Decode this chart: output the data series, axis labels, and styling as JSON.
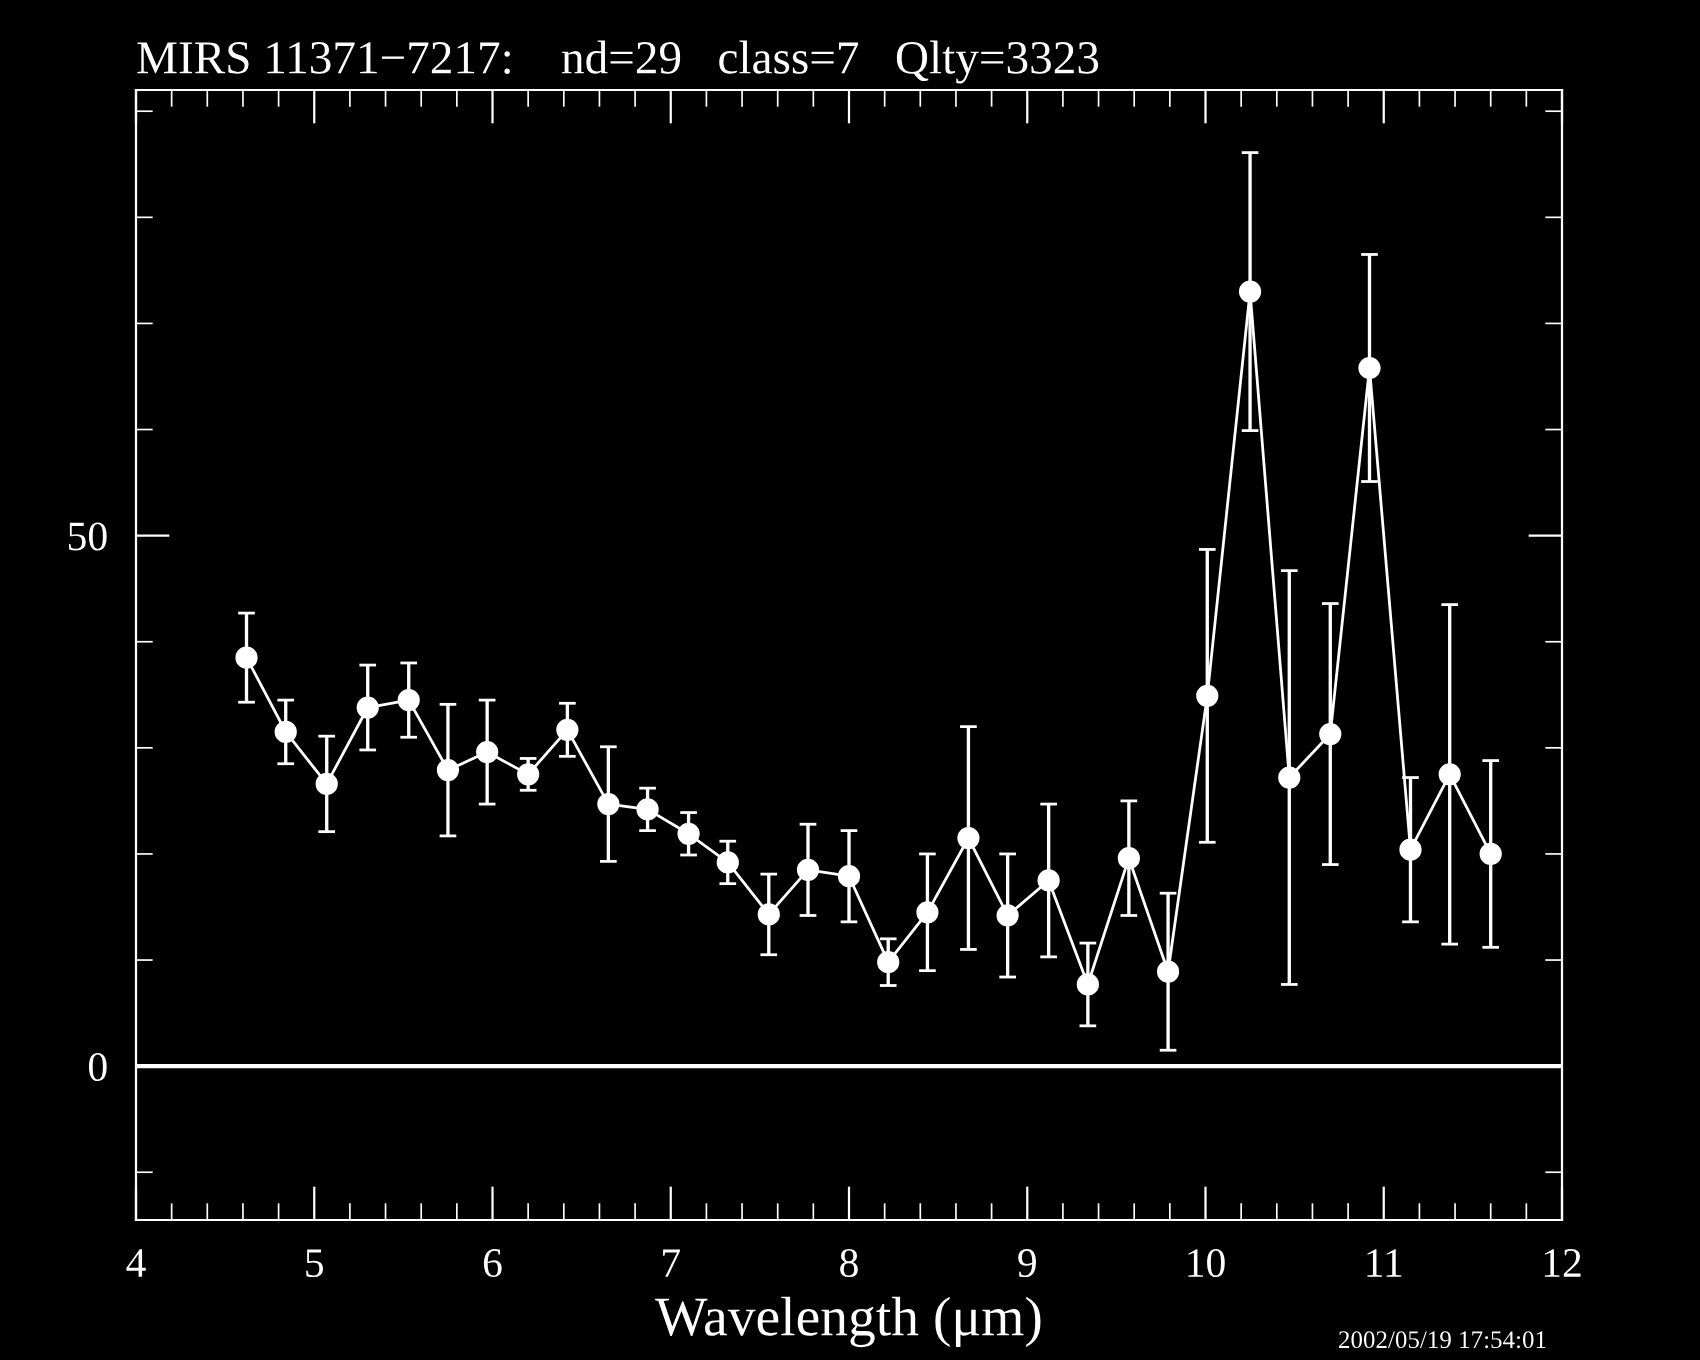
{
  "chart_data": {
    "type": "line",
    "title": "MIRS 11371−7217:    nd=29   class=7   Qlty=3323",
    "xlabel": "Wavelength (μm)",
    "annotations": [
      "2002/05/19 17:54:01"
    ],
    "x": [
      4.62,
      4.84,
      5.07,
      5.3,
      5.53,
      5.75,
      5.97,
      6.2,
      6.42,
      6.65,
      6.87,
      7.1,
      7.32,
      7.55,
      7.77,
      8.0,
      8.22,
      8.44,
      8.67,
      8.89,
      9.12,
      9.34,
      9.57,
      9.79,
      10.01,
      10.25,
      10.47,
      10.7,
      10.92,
      11.15,
      11.37,
      11.6
    ],
    "series": [
      {
        "color": "#ffffff",
        "values": [
          38.5,
          31.5,
          26.6,
          33.8,
          34.5,
          27.9,
          29.6,
          27.5,
          31.7,
          24.7,
          24.2,
          21.9,
          19.2,
          14.3,
          18.5,
          17.9,
          9.8,
          14.5,
          21.5,
          14.2,
          17.5,
          7.7,
          19.6,
          8.9,
          34.9,
          73.0,
          27.2,
          31.3,
          65.8,
          20.4,
          27.5,
          20.0
        ],
        "errors": [
          4.2,
          3,
          4.5,
          4,
          3.5,
          6.2,
          4.9,
          1.5,
          2.5,
          5.4,
          2,
          2,
          2,
          3.8,
          4.3,
          4.3,
          2.2,
          5.5,
          10.5,
          5.8,
          7.2,
          3.9,
          5.4,
          7.4,
          13.8,
          13.1,
          19.5,
          12.3,
          10.7,
          6.8,
          16,
          8.8
        ]
      }
    ],
    "marker": "circle",
    "line_style": "solid",
    "grid": false,
    "legend": false,
    "xlim": [
      4,
      12
    ],
    "ylim": [
      -14.5,
      92
    ],
    "xticks": [
      4,
      {
        "value": 4.2,
        "label": null
      },
      {
        "value": 4.4,
        "label": null
      },
      {
        "value": 4.6,
        "label": null
      },
      {
        "value": 4.8,
        "label": null
      },
      5,
      {
        "value": 5.2,
        "label": null
      },
      {
        "value": 5.4,
        "label": null
      },
      {
        "value": 5.6,
        "label": null
      },
      {
        "value": 5.8,
        "label": null
      },
      6,
      {
        "value": 6.2,
        "label": null
      },
      {
        "value": 6.4,
        "label": null
      },
      {
        "value": 6.6,
        "label": null
      },
      {
        "value": 6.8,
        "label": null
      },
      7,
      {
        "value": 7.2,
        "label": null
      },
      {
        "value": 7.4,
        "label": null
      },
      {
        "value": 7.6,
        "label": null
      },
      {
        "value": 7.8,
        "label": null
      },
      8,
      {
        "value": 8.2,
        "label": null
      },
      {
        "value": 8.4,
        "label": null
      },
      {
        "value": 8.6,
        "label": null
      },
      {
        "value": 8.8,
        "label": null
      },
      9,
      {
        "value": 9.2,
        "label": null
      },
      {
        "value": 9.4,
        "label": null
      },
      {
        "value": 9.6,
        "label": null
      },
      {
        "value": 9.8,
        "label": null
      },
      10,
      {
        "value": 10.2,
        "label": null
      },
      {
        "value": 10.4,
        "label": null
      },
      {
        "value": 10.6,
        "label": null
      },
      {
        "value": 10.8,
        "label": null
      },
      11,
      {
        "value": 11.2,
        "label": null
      },
      {
        "value": 11.4,
        "label": null
      },
      {
        "value": 11.6,
        "label": null
      },
      {
        "value": 11.8,
        "label": null
      },
      12
    ],
    "yticks": [
      {
        "value": -10,
        "label": null
      },
      0,
      {
        "value": 10,
        "label": null
      },
      {
        "value": 20,
        "label": null
      },
      {
        "value": 30,
        "label": null
      },
      {
        "value": 40,
        "label": null
      },
      50,
      {
        "value": 60,
        "label": null
      },
      {
        "value": 70,
        "label": null
      },
      {
        "value": 80,
        "label": null
      },
      {
        "value": 90,
        "label": null
      }
    ],
    "ref_lines": [
      {
        "axis": "y",
        "value": 0,
        "color": "#ffffff",
        "line_style": "solid"
      }
    ]
  }
}
